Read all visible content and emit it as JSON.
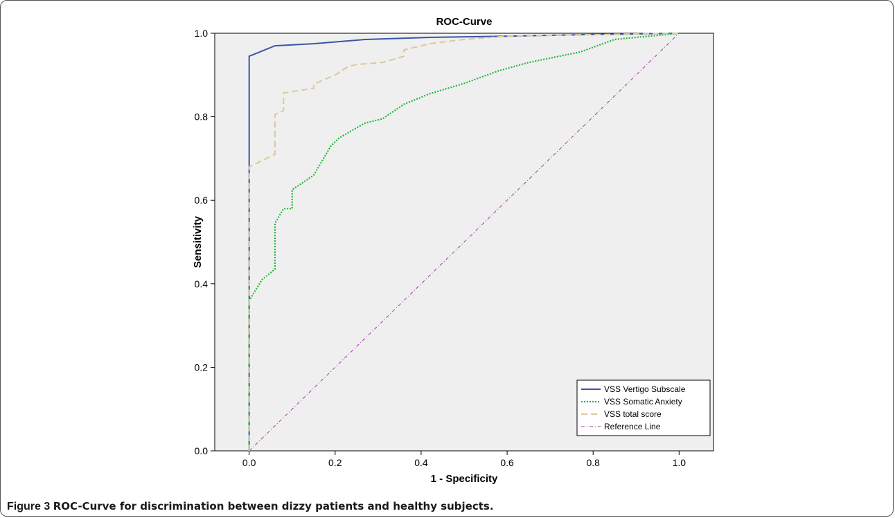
{
  "caption": {
    "figure_number": "Figure 3",
    "text": "ROC-Curve for discrimination between dizzy patients and healthy subjects."
  },
  "chart_data": {
    "type": "line",
    "title": "ROC-Curve",
    "xlabel": "1 - Specificity",
    "ylabel": "Sensitivity",
    "xlim": [
      -0.08,
      1.08
    ],
    "ylim": [
      0,
      1
    ],
    "xticks": [
      "0.0",
      "0.2",
      "0.4",
      "0.6",
      "0.8",
      "1.0"
    ],
    "yticks": [
      "0.0",
      "0.2",
      "0.4",
      "0.6",
      "0.8",
      "1.0"
    ],
    "grid": false,
    "legend_position": "bottom-right",
    "plot_background": "#efefef",
    "series": [
      {
        "name": "VSS Vertigo Subscale",
        "color": "#3a55a8",
        "style": "solid",
        "x": [
          0,
          0,
          0,
          0.06,
          0.15,
          0.27,
          0.42,
          0.6,
          0.8,
          1.0
        ],
        "y": [
          0,
          0.68,
          0.945,
          0.97,
          0.975,
          0.985,
          0.99,
          0.993,
          0.997,
          1.0
        ]
      },
      {
        "name": "VSS Somatic Anxiety",
        "color": "#1fb83a",
        "style": "dotted",
        "x": [
          0,
          0,
          0.03,
          0.06,
          0.06,
          0.08,
          0.1,
          0.1,
          0.15,
          0.17,
          0.19,
          0.21,
          0.27,
          0.31,
          0.36,
          0.42,
          0.5,
          0.58,
          0.65,
          0.77,
          0.85,
          0.9,
          1.0
        ],
        "y": [
          0,
          0.36,
          0.41,
          0.435,
          0.545,
          0.58,
          0.58,
          0.625,
          0.66,
          0.695,
          0.73,
          0.75,
          0.785,
          0.795,
          0.83,
          0.855,
          0.88,
          0.91,
          0.93,
          0.955,
          0.985,
          0.99,
          1.0
        ]
      },
      {
        "name": "VSS total score",
        "color": "#d9c99a",
        "style": "dashed",
        "x": [
          0,
          0,
          0.06,
          0.06,
          0.08,
          0.08,
          0.15,
          0.15,
          0.2,
          0.23,
          0.25,
          0.31,
          0.36,
          0.36,
          0.42,
          0.5,
          0.6,
          0.8,
          1.0
        ],
        "y": [
          0,
          0.68,
          0.71,
          0.805,
          0.815,
          0.857,
          0.868,
          0.878,
          0.9,
          0.92,
          0.925,
          0.93,
          0.945,
          0.96,
          0.975,
          0.985,
          0.993,
          0.997,
          1.0
        ]
      },
      {
        "name": "Reference Line",
        "color": "#9a3f9a",
        "style": "dashdot",
        "x": [
          0,
          1
        ],
        "y": [
          0,
          1
        ]
      }
    ]
  }
}
